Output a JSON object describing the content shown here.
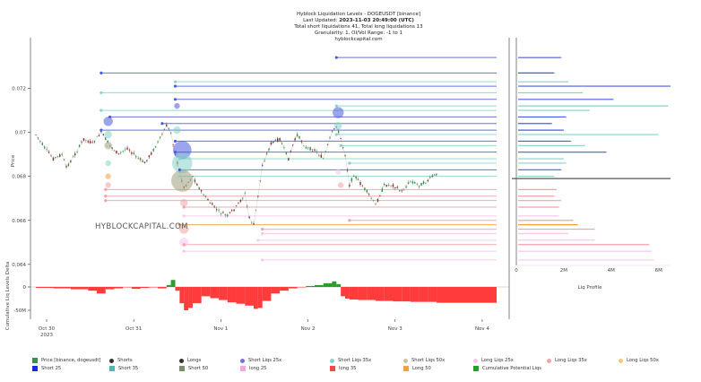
{
  "header": {
    "title": "Hyblock Liquidation Levels - DOGEUSDT [binance]",
    "updated_prefix": "Last Updated:",
    "updated_value": "2023-11-03 20:49:00 (UTC)",
    "totals": "Total short liquidations 41, Total long liquidations 13",
    "granularity": "Granularity: 1, OI/Vol Range: -1 to 1",
    "site": "hyblockcapital.com"
  },
  "watermark": "HYBLOCKCAPITAL.COM",
  "chart_data": [
    {
      "type": "line",
      "title": "Hyblock Liquidation Levels - DOGEUSDT [binance]",
      "ylabel": "Price",
      "ylim": [
        0.0633,
        0.0741
      ],
      "yticks": [
        0.064,
        0.066,
        0.068,
        0.07,
        0.072
      ],
      "ytick_labels": [
        "0.064",
        "0.066",
        "0.068",
        "0.07",
        "0.072"
      ],
      "xticks": [
        "Oct 30\n2023",
        "Oct 31",
        "Nov 1",
        "Nov 2",
        "Nov 3",
        "Nov 4"
      ],
      "xtick_labels": [
        "Oct 30",
        "Oct 31",
        "Nov 1",
        "Nov 2",
        "Nov 3",
        "Nov 4"
      ],
      "x_year": "2023",
      "xlim_days": [
        0,
        5.0
      ],
      "series": [
        {
          "name": "Price [binance, dogeusdt]",
          "kind": "candlestick-approx",
          "x_days": [
            0.0,
            0.1,
            0.2,
            0.3,
            0.35,
            0.45,
            0.55,
            0.65,
            0.75,
            0.85,
            0.95,
            1.05,
            1.15,
            1.25,
            1.35,
            1.45,
            1.5,
            1.55,
            1.6,
            1.65,
            1.7,
            1.8,
            1.9,
            2.0,
            2.1,
            2.2,
            2.3,
            2.4,
            2.45,
            2.5,
            2.55,
            2.6,
            2.7,
            2.8,
            2.9,
            2.95,
            3.0,
            3.1,
            3.2,
            3.3,
            3.4,
            3.45,
            3.5,
            3.55,
            3.6,
            3.65,
            3.7,
            3.8,
            3.9,
            4.0,
            4.1,
            4.2,
            4.3,
            4.4,
            4.5,
            4.55,
            4.62
          ],
          "values": [
            0.0699,
            0.0693,
            0.0688,
            0.069,
            0.0684,
            0.069,
            0.0697,
            0.0695,
            0.07,
            0.0694,
            0.069,
            0.0693,
            0.0689,
            0.0686,
            0.0692,
            0.0699,
            0.0703,
            0.07,
            0.069,
            0.0682,
            0.0675,
            0.068,
            0.0673,
            0.0668,
            0.0664,
            0.0662,
            0.0666,
            0.0672,
            0.0661,
            0.0658,
            0.0671,
            0.0685,
            0.0695,
            0.0697,
            0.0688,
            0.0694,
            0.0699,
            0.0693,
            0.0692,
            0.0688,
            0.07,
            0.0703,
            0.0697,
            0.069,
            0.0676,
            0.0681,
            0.0678,
            0.0673,
            0.0667,
            0.0676,
            0.0676,
            0.0673,
            0.0678,
            0.0676,
            0.0678,
            0.068,
            0.0681
          ]
        }
      ],
      "liquidation_levels": {
        "shorts": [
          {
            "price": 0.0734,
            "start_day": 3.45,
            "color": "#4b5be0"
          },
          {
            "price": 0.0727,
            "start_day": 0.75,
            "color": "#4b5be0"
          },
          {
            "price": 0.0723,
            "start_day": 1.6,
            "color": "#86d2c8"
          },
          {
            "price": 0.0721,
            "start_day": 1.6,
            "color": "#4b5be0"
          },
          {
            "price": 0.0718,
            "start_day": 0.75,
            "color": "#86d2c8"
          },
          {
            "price": 0.0715,
            "start_day": 1.6,
            "color": "#4b5be0"
          },
          {
            "price": 0.0712,
            "start_day": 3.45,
            "color": "#86d2c8"
          },
          {
            "price": 0.071,
            "start_day": 0.75,
            "color": "#86d2c8"
          },
          {
            "price": 0.0707,
            "start_day": 0.85,
            "color": "#4b5be0"
          },
          {
            "price": 0.0704,
            "start_day": 1.45,
            "color": "#4b5be0"
          },
          {
            "price": 0.0701,
            "start_day": 0.75,
            "color": "#4b5be0"
          },
          {
            "price": 0.0699,
            "start_day": 3.45,
            "color": "#86d2c8"
          },
          {
            "price": 0.0696,
            "start_day": 1.6,
            "color": "#4b5be0"
          },
          {
            "price": 0.0694,
            "start_day": 3.5,
            "color": "#86d2c8"
          },
          {
            "price": 0.0691,
            "start_day": 1.6,
            "color": "#4b5be0"
          },
          {
            "price": 0.0688,
            "start_day": 1.65,
            "color": "#86d2c8"
          },
          {
            "price": 0.0686,
            "start_day": 3.6,
            "color": "#86d2c8"
          },
          {
            "price": 0.0683,
            "start_day": 1.65,
            "color": "#4b5be0"
          },
          {
            "price": 0.068,
            "start_day": 1.65,
            "color": "#86d2c8"
          }
        ],
        "longs": [
          {
            "price": 0.0674,
            "start_day": 0.8,
            "color": "#f4a1a8"
          },
          {
            "price": 0.0671,
            "start_day": 0.8,
            "color": "#f4a1a8"
          },
          {
            "price": 0.0669,
            "start_day": 0.8,
            "color": "#f4a1a8"
          },
          {
            "price": 0.0666,
            "start_day": 1.7,
            "color": "#f4a1a8"
          },
          {
            "price": 0.0662,
            "start_day": 1.7,
            "color": "#f6c8ee"
          },
          {
            "price": 0.066,
            "start_day": 3.6,
            "color": "#f4a1a8"
          },
          {
            "price": 0.0658,
            "start_day": 1.65,
            "color": "#f2a23c"
          },
          {
            "price": 0.0656,
            "start_day": 2.6,
            "color": "#f4a1a8"
          },
          {
            "price": 0.0654,
            "start_day": 2.6,
            "color": "#f6c8ee"
          },
          {
            "price": 0.0651,
            "start_day": 2.55,
            "color": "#f6c8ee"
          },
          {
            "price": 0.0649,
            "start_day": 1.7,
            "color": "#f4a1a8"
          },
          {
            "price": 0.0646,
            "start_day": 1.7,
            "color": "#f6c8ee"
          },
          {
            "price": 0.0642,
            "start_day": 2.6,
            "color": "#f6c8ee"
          }
        ]
      },
      "bubbles": [
        {
          "x_day": 0.83,
          "price": 0.0705,
          "size": 5,
          "color": "#4b5be0"
        },
        {
          "x_day": 0.83,
          "price": 0.0699,
          "size": 4,
          "color": "#86d2c8"
        },
        {
          "x_day": 0.83,
          "price": 0.0694,
          "size": 4,
          "color": "#a0a080"
        },
        {
          "x_day": 0.83,
          "price": 0.0686,
          "size": 3,
          "color": "#86d2c8"
        },
        {
          "x_day": 0.83,
          "price": 0.068,
          "size": 3,
          "color": "#f2a23c"
        },
        {
          "x_day": 0.83,
          "price": 0.0676,
          "size": 3,
          "color": "#f4a1a8"
        },
        {
          "x_day": 1.62,
          "price": 0.0712,
          "size": 3,
          "color": "#4b5be0"
        },
        {
          "x_day": 1.62,
          "price": 0.0701,
          "size": 4,
          "color": "#86d2c8"
        },
        {
          "x_day": 1.68,
          "price": 0.0692,
          "size": 10,
          "color": "#4b5be0"
        },
        {
          "x_day": 1.68,
          "price": 0.0686,
          "size": 11,
          "color": "#86d2c8"
        },
        {
          "x_day": 1.68,
          "price": 0.0678,
          "size": 12,
          "color": "#a0a080"
        },
        {
          "x_day": 1.7,
          "price": 0.0668,
          "size": 4,
          "color": "#f4a1a8"
        },
        {
          "x_day": 1.7,
          "price": 0.0656,
          "size": 5,
          "color": "#f4a1a8"
        },
        {
          "x_day": 1.7,
          "price": 0.065,
          "size": 5,
          "color": "#f6c8ee"
        },
        {
          "x_day": 3.47,
          "price": 0.0709,
          "size": 6,
          "color": "#4b5be0"
        },
        {
          "x_day": 3.47,
          "price": 0.0703,
          "size": 4,
          "color": "#86d2c8"
        },
        {
          "x_day": 3.47,
          "price": 0.0682,
          "size": 3,
          "color": "#f6c8ee"
        },
        {
          "x_day": 3.5,
          "price": 0.0676,
          "size": 3,
          "color": "#f4a1a8"
        }
      ]
    },
    {
      "type": "bar",
      "title": "",
      "ylabel": "Cumulative Liq Levels Delta",
      "yticks": [
        0,
        -50
      ],
      "ytick_labels": [
        "0",
        "-50M"
      ],
      "ylim": [
        -70,
        30
      ],
      "x_days": [
        0.0,
        0.2,
        0.4,
        0.6,
        0.7,
        0.8,
        0.9,
        1.0,
        1.1,
        1.2,
        1.3,
        1.4,
        1.5,
        1.55,
        1.6,
        1.65,
        1.7,
        1.75,
        1.8,
        1.9,
        2.0,
        2.1,
        2.2,
        2.3,
        2.4,
        2.5,
        2.55,
        2.6,
        2.7,
        2.8,
        2.9,
        3.0,
        3.1,
        3.2,
        3.3,
        3.4,
        3.45,
        3.5,
        3.55,
        3.6,
        3.7,
        3.8,
        3.9,
        4.0,
        4.1,
        4.2,
        4.3,
        4.4,
        4.5,
        4.6
      ],
      "values": [
        -2,
        -3,
        -5,
        -8,
        -14,
        -5,
        -3,
        -1,
        -4,
        -2,
        -1,
        -3,
        4,
        15,
        -8,
        -35,
        -50,
        -45,
        -35,
        -20,
        -24,
        -28,
        -33,
        -36,
        -40,
        -47,
        -45,
        -30,
        -14,
        -8,
        -3,
        -1,
        2,
        4,
        8,
        12,
        6,
        -20,
        -25,
        -27,
        -28,
        -28,
        -30,
        -30,
        -31,
        -31,
        -32,
        -32,
        -32,
        -34
      ],
      "colors": {
        "positive": "#2a9d2a",
        "negative": "#ff3b3b"
      }
    },
    {
      "type": "bar",
      "title": "Liq Profile",
      "xlabel": "Liq Profile",
      "xticks": [
        0,
        2,
        4,
        6
      ],
      "xtick_labels": [
        "0",
        "2M",
        "4M",
        "6M"
      ],
      "xlim": [
        0,
        6.2
      ],
      "orientation": "horizontal",
      "current_price": 0.0679,
      "levels": [
        {
          "price": 0.0734,
          "value": 1.9,
          "color": "#4b5be0"
        },
        {
          "price": 0.0727,
          "value": 1.6,
          "color": "#4b5be0"
        },
        {
          "price": 0.0723,
          "value": 2.2,
          "color": "#86d2c8"
        },
        {
          "price": 0.0721,
          "value": 6.5,
          "color": "#4b5be0"
        },
        {
          "price": 0.0718,
          "value": 2.8,
          "color": "#86d2c8"
        },
        {
          "price": 0.0715,
          "value": 4.1,
          "color": "#4b5be0"
        },
        {
          "price": 0.0712,
          "value": 6.4,
          "color": "#86d2c8"
        },
        {
          "price": 0.071,
          "value": 3.1,
          "color": "#86d2c8"
        },
        {
          "price": 0.0707,
          "value": 2.1,
          "color": "#4b5be0"
        },
        {
          "price": 0.0704,
          "value": 1.5,
          "color": "#4b5be0"
        },
        {
          "price": 0.0701,
          "value": 2.0,
          "color": "#4b5be0"
        },
        {
          "price": 0.0699,
          "value": 6.0,
          "color": "#86d2c8"
        },
        {
          "price": 0.0696,
          "value": 2.3,
          "color": "#4b5be0"
        },
        {
          "price": 0.0694,
          "value": 2.9,
          "color": "#86d2c8"
        },
        {
          "price": 0.0691,
          "value": 3.8,
          "color": "#4b5be0"
        },
        {
          "price": 0.0688,
          "value": 2.0,
          "color": "#86d2c8"
        },
        {
          "price": 0.0686,
          "value": 2.1,
          "color": "#86d2c8"
        },
        {
          "price": 0.0683,
          "value": 1.9,
          "color": "#4b5be0"
        },
        {
          "price": 0.068,
          "value": 1.6,
          "color": "#86d2c8"
        },
        {
          "price": 0.0674,
          "value": 1.7,
          "color": "#f4a1a8"
        },
        {
          "price": 0.0671,
          "value": 1.6,
          "color": "#f4a1a8"
        },
        {
          "price": 0.0669,
          "value": 1.9,
          "color": "#f4a1a8"
        },
        {
          "price": 0.0666,
          "value": 1.8,
          "color": "#f4a1a8"
        },
        {
          "price": 0.0662,
          "value": 1.8,
          "color": "#f6c8ee"
        },
        {
          "price": 0.066,
          "value": 2.4,
          "color": "#f4a1a8"
        },
        {
          "price": 0.0658,
          "value": 2.6,
          "color": "#f2a23c"
        },
        {
          "price": 0.0656,
          "value": 3.3,
          "color": "#f4a1a8"
        },
        {
          "price": 0.0654,
          "value": 2.2,
          "color": "#f6c8ee"
        },
        {
          "price": 0.0651,
          "value": 3.3,
          "color": "#f6c8ee"
        },
        {
          "price": 0.0649,
          "value": 5.6,
          "color": "#f4a1a8"
        },
        {
          "price": 0.0646,
          "value": 5.7,
          "color": "#f6c8ee"
        },
        {
          "price": 0.0642,
          "value": 5.8,
          "color": "#f6c8ee"
        }
      ]
    }
  ],
  "legend": [
    {
      "label": "Price [binance, dogeusdt]",
      "color": "#3c8f4a",
      "shape": "candle"
    },
    {
      "label": "Shorts",
      "color": "#333333",
      "shape": "dot"
    },
    {
      "label": "Longs",
      "color": "#333333",
      "shape": "dot"
    },
    {
      "label": "Short Liqs 25x",
      "color": "#6f6ff0",
      "shape": "dot"
    },
    {
      "label": "Short Liqs 35x",
      "color": "#86d2c8",
      "shape": "dot"
    },
    {
      "label": "Short Liqs 50x",
      "color": "#c7c2a6",
      "shape": "dot"
    },
    {
      "label": "Long Liqs 25x",
      "color": "#f6c8ee",
      "shape": "dot"
    },
    {
      "label": "Long Liqs 35x",
      "color": "#f4a1a8",
      "shape": "dot"
    },
    {
      "label": "Long Liqs 50x",
      "color": "#f5c873",
      "shape": "dot"
    },
    {
      "label": "Short 25",
      "color": "#1a2bd6",
      "shape": "square"
    },
    {
      "label": "Short 35",
      "color": "#4fb6b4",
      "shape": "square"
    },
    {
      "label": "Short 50",
      "color": "#7c8f6c",
      "shape": "square"
    },
    {
      "label": "long 25",
      "color": "#f4a6e0",
      "shape": "square"
    },
    {
      "label": "long 35",
      "color": "#f04a4a",
      "shape": "square"
    },
    {
      "label": "Long 50",
      "color": "#f2a23c",
      "shape": "square"
    },
    {
      "label": "Cumulative Potential Liqs",
      "color": "#2a9d2a",
      "shape": "square"
    }
  ]
}
